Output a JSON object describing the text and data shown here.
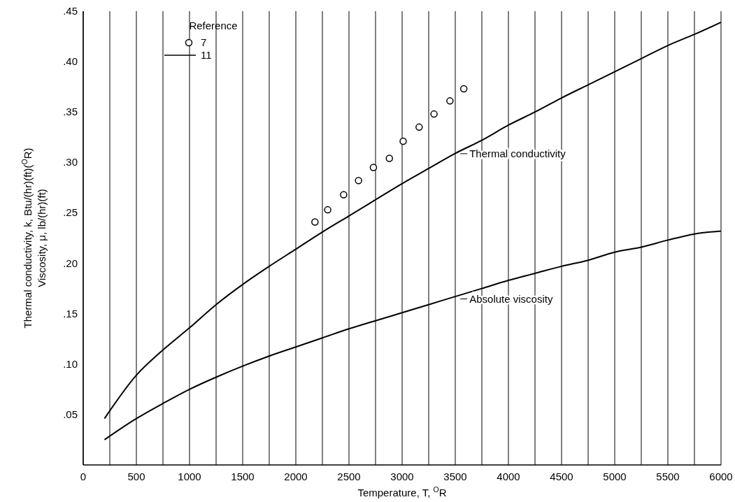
{
  "chart_data": {
    "type": "line",
    "xlabel": "Temperature, T, $^{O}$R",
    "ylabel": "Thermal conductivity, k, Btu/(hr)(ft)($^{O}$R)\nViscosity, μ, lb/(hr)(ft)",
    "legend_title": "Reference",
    "legend": "top left",
    "grid": "x",
    "xlim": [
      0,
      6000
    ],
    "ylim": [
      0,
      0.45
    ],
    "xticks": [
      0,
      {
        "value": 250,
        "label": null
      },
      500,
      {
        "value": 750,
        "label": null
      },
      1000,
      {
        "value": 1250,
        "label": null
      },
      1500,
      {
        "value": 1750,
        "label": null
      },
      2000,
      {
        "value": 2250,
        "label": null
      },
      2500,
      {
        "value": 2750,
        "label": null
      },
      3000,
      {
        "value": 3250,
        "label": null
      },
      3500,
      {
        "value": 3750,
        "label": null
      },
      4000,
      {
        "value": 4250,
        "label": null
      },
      4500,
      {
        "value": 4750,
        "label": null
      },
      5000,
      {
        "value": 5250,
        "label": null
      },
      5500,
      {
        "value": 5750,
        "label": null
      },
      6000
    ],
    "yticks": [
      {
        "value": 0.05,
        "label": ".05"
      },
      {
        "value": 0.1,
        "label": ".10"
      },
      {
        "value": 0.15,
        "label": ".15"
      },
      {
        "value": 0.2,
        "label": ".20"
      },
      {
        "value": 0.25,
        "label": ".25"
      },
      {
        "value": 0.3,
        "label": ".30"
      },
      {
        "value": 0.35,
        "label": ".35"
      },
      {
        "value": 0.4,
        "label": ".40"
      },
      {
        "value": 0.45,
        "label": ".45"
      }
    ],
    "series": [
      {
        "name": "7",
        "type": "scatter",
        "marker": "circle",
        "color": "#000000",
        "x": [
          2180,
          2300,
          2450,
          2590,
          2730,
          2880,
          3010,
          3160,
          3300,
          3450,
          3580
        ],
        "values": [
          0.241,
          0.253,
          0.268,
          0.282,
          0.295,
          0.304,
          0.321,
          0.335,
          0.348,
          0.361,
          0.373
        ]
      },
      {
        "name": "11",
        "marker": "none",
        "color": "#000000",
        "x": [
          200,
          500,
          750,
          1000,
          1250,
          1500,
          1750,
          2000,
          2250,
          2500,
          2750,
          3000,
          3250,
          3500,
          3750,
          4000,
          4250,
          4500,
          4750,
          5000,
          5250,
          5500,
          5750,
          6000
        ],
        "values": [
          0.046,
          0.089,
          0.114,
          0.136,
          0.159,
          0.179,
          0.197,
          0.214,
          0.231,
          0.247,
          0.263,
          0.279,
          0.294,
          0.309,
          0.322,
          0.337,
          0.35,
          0.364,
          0.377,
          0.39,
          0.403,
          0.416,
          0.427,
          0.439
        ]
      },
      {
        "marker": "none",
        "color": "#000000",
        "x": [
          200,
          500,
          750,
          1000,
          1250,
          1500,
          1750,
          2000,
          2250,
          2500,
          2750,
          3000,
          3250,
          3500,
          3750,
          4000,
          4250,
          4500,
          4750,
          5000,
          5250,
          5500,
          5750,
          6000
        ],
        "values": [
          0.025,
          0.046,
          0.061,
          0.075,
          0.087,
          0.098,
          0.108,
          0.117,
          0.126,
          0.135,
          0.143,
          0.151,
          0.159,
          0.167,
          0.175,
          0.183,
          0.19,
          0.197,
          0.203,
          0.211,
          0.216,
          0.223,
          0.229,
          0.232
        ]
      }
    ],
    "annotations": [
      "Thermal conductivity",
      "Absolute viscosity"
    ]
  }
}
